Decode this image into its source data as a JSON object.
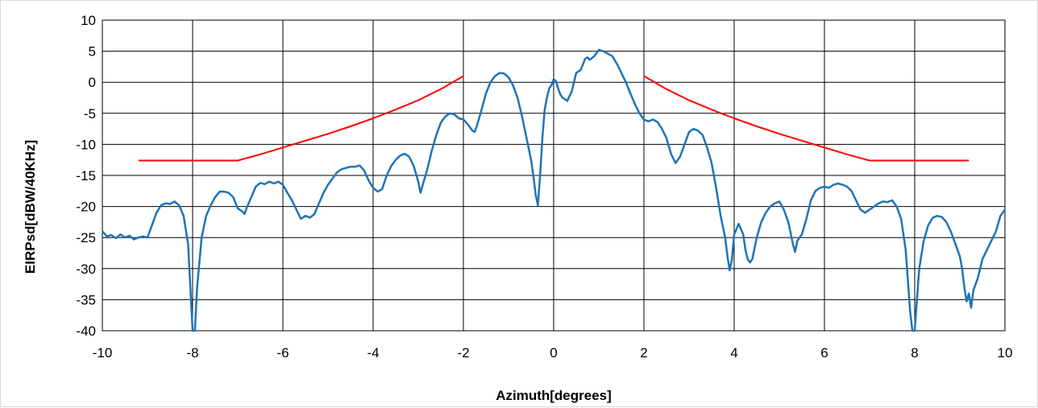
{
  "chart_data": {
    "type": "line",
    "title": "",
    "xlabel": "Azimuth[degrees]",
    "ylabel": "EIRPsd[dBW/40KHz]",
    "xlim": [
      -10,
      10
    ],
    "ylim": [
      -40,
      10
    ],
    "x_ticks": [
      -10,
      -8,
      -6,
      -4,
      -2,
      0,
      2,
      4,
      6,
      8,
      10
    ],
    "y_ticks": [
      10,
      5,
      0,
      -5,
      -10,
      -15,
      -20,
      -25,
      -30,
      -35,
      -40
    ],
    "grid": true,
    "legend": "none",
    "colors": {
      "measured": "#1f74b8",
      "mask": "#ff0000",
      "grid": "#000000"
    },
    "series": [
      {
        "key": "measured",
        "points": [
          [
            -10,
            -24
          ],
          [
            -9.9,
            -24.8
          ],
          [
            -9.8,
            -24.6
          ],
          [
            -9.7,
            -25.1
          ],
          [
            -9.6,
            -24.5
          ],
          [
            -9.5,
            -25.0
          ],
          [
            -9.4,
            -24.7
          ],
          [
            -9.3,
            -25.3
          ],
          [
            -9.2,
            -25.0
          ],
          [
            -9.1,
            -24.8
          ],
          [
            -9.0,
            -25.0
          ],
          [
            -8.9,
            -23.0
          ],
          [
            -8.8,
            -21.0
          ],
          [
            -8.7,
            -19.8
          ],
          [
            -8.6,
            -19.5
          ],
          [
            -8.5,
            -19.6
          ],
          [
            -8.4,
            -19.2
          ],
          [
            -8.3,
            -19.8
          ],
          [
            -8.2,
            -21.5
          ],
          [
            -8.1,
            -26
          ],
          [
            -8.05,
            -33
          ],
          [
            -8.0,
            -40
          ],
          [
            -7.95,
            -40
          ],
          [
            -7.9,
            -33
          ],
          [
            -7.8,
            -25
          ],
          [
            -7.7,
            -21.5
          ],
          [
            -7.6,
            -19.8
          ],
          [
            -7.5,
            -18.5
          ],
          [
            -7.4,
            -17.6
          ],
          [
            -7.3,
            -17.6
          ],
          [
            -7.2,
            -17.8
          ],
          [
            -7.1,
            -18.5
          ],
          [
            -7.0,
            -20.3
          ],
          [
            -6.9,
            -20.8
          ],
          [
            -6.85,
            -21.2
          ],
          [
            -6.8,
            -20.2
          ],
          [
            -6.7,
            -18.5
          ],
          [
            -6.6,
            -16.8
          ],
          [
            -6.5,
            -16.2
          ],
          [
            -6.4,
            -16.4
          ],
          [
            -6.3,
            -16.0
          ],
          [
            -6.2,
            -16.3
          ],
          [
            -6.1,
            -16.0
          ],
          [
            -6.0,
            -16.5
          ],
          [
            -5.9,
            -17.8
          ],
          [
            -5.8,
            -19.0
          ],
          [
            -5.7,
            -20.5
          ],
          [
            -5.6,
            -22.0
          ],
          [
            -5.5,
            -21.5
          ],
          [
            -5.4,
            -21.8
          ],
          [
            -5.3,
            -21.2
          ],
          [
            -5.2,
            -19.5
          ],
          [
            -5.1,
            -17.8
          ],
          [
            -5.0,
            -16.5
          ],
          [
            -4.9,
            -15.5
          ],
          [
            -4.8,
            -14.5
          ],
          [
            -4.7,
            -14.0
          ],
          [
            -4.6,
            -13.8
          ],
          [
            -4.5,
            -13.6
          ],
          [
            -4.4,
            -13.6
          ],
          [
            -4.3,
            -13.4
          ],
          [
            -4.2,
            -14.2
          ],
          [
            -4.1,
            -15.8
          ],
          [
            -4.0,
            -17.0
          ],
          [
            -3.9,
            -17.6
          ],
          [
            -3.8,
            -17.2
          ],
          [
            -3.7,
            -15.0
          ],
          [
            -3.6,
            -13.5
          ],
          [
            -3.5,
            -12.5
          ],
          [
            -3.4,
            -11.8
          ],
          [
            -3.3,
            -11.5
          ],
          [
            -3.2,
            -12.0
          ],
          [
            -3.1,
            -13.5
          ],
          [
            -3.0,
            -16.0
          ],
          [
            -2.95,
            -17.8
          ],
          [
            -2.9,
            -16.5
          ],
          [
            -2.8,
            -14.0
          ],
          [
            -2.7,
            -11.0
          ],
          [
            -2.6,
            -8.5
          ],
          [
            -2.5,
            -6.5
          ],
          [
            -2.4,
            -5.5
          ],
          [
            -2.3,
            -5.0
          ],
          [
            -2.2,
            -5.2
          ],
          [
            -2.1,
            -5.8
          ],
          [
            -2.0,
            -6.0
          ],
          [
            -1.9,
            -6.8
          ],
          [
            -1.8,
            -7.8
          ],
          [
            -1.75,
            -8.0
          ],
          [
            -1.7,
            -7.0
          ],
          [
            -1.6,
            -4.5
          ],
          [
            -1.5,
            -1.8
          ],
          [
            -1.4,
            0.0
          ],
          [
            -1.3,
            1.0
          ],
          [
            -1.2,
            1.5
          ],
          [
            -1.1,
            1.4
          ],
          [
            -1.0,
            0.8
          ],
          [
            -0.9,
            -0.5
          ],
          [
            -0.8,
            -2.5
          ],
          [
            -0.7,
            -5.5
          ],
          [
            -0.6,
            -9.0
          ],
          [
            -0.5,
            -12.5
          ],
          [
            -0.45,
            -15
          ],
          [
            -0.4,
            -18
          ],
          [
            -0.35,
            -19.8
          ],
          [
            -0.3,
            -15
          ],
          [
            -0.25,
            -9
          ],
          [
            -0.2,
            -4.5
          ],
          [
            -0.15,
            -2.5
          ],
          [
            -0.1,
            -1.0
          ],
          [
            -0.05,
            -0.5
          ],
          [
            0.0,
            0.5
          ],
          [
            0.05,
            0.2
          ],
          [
            0.1,
            -1.0
          ],
          [
            0.15,
            -2.0
          ],
          [
            0.2,
            -2.5
          ],
          [
            0.3,
            -3.0
          ],
          [
            0.4,
            -1.5
          ],
          [
            0.5,
            1.5
          ],
          [
            0.6,
            2.0
          ],
          [
            0.7,
            3.8
          ],
          [
            0.75,
            4.0
          ],
          [
            0.8,
            3.6
          ],
          [
            0.9,
            4.2
          ],
          [
            1.0,
            5.2
          ],
          [
            1.1,
            5.0
          ],
          [
            1.2,
            4.6
          ],
          [
            1.3,
            4.2
          ],
          [
            1.4,
            3.0
          ],
          [
            1.5,
            1.5
          ],
          [
            1.6,
            0.0
          ],
          [
            1.7,
            -1.8
          ],
          [
            1.8,
            -3.5
          ],
          [
            1.9,
            -5.0
          ],
          [
            2.0,
            -6.0
          ],
          [
            2.1,
            -6.3
          ],
          [
            2.2,
            -6.0
          ],
          [
            2.3,
            -6.4
          ],
          [
            2.4,
            -7.5
          ],
          [
            2.5,
            -9.0
          ],
          [
            2.6,
            -11.5
          ],
          [
            2.7,
            -13.0
          ],
          [
            2.8,
            -12.0
          ],
          [
            2.9,
            -10.0
          ],
          [
            3.0,
            -8.0
          ],
          [
            3.1,
            -7.5
          ],
          [
            3.2,
            -7.8
          ],
          [
            3.3,
            -8.5
          ],
          [
            3.4,
            -10.5
          ],
          [
            3.5,
            -13.0
          ],
          [
            3.6,
            -17.0
          ],
          [
            3.7,
            -21.5
          ],
          [
            3.8,
            -25.0
          ],
          [
            3.85,
            -28.0
          ],
          [
            3.9,
            -30.3
          ],
          [
            3.95,
            -28.5
          ],
          [
            4.0,
            -24.5
          ],
          [
            4.1,
            -22.8
          ],
          [
            4.2,
            -24.5
          ],
          [
            4.25,
            -27
          ],
          [
            4.3,
            -28.5
          ],
          [
            4.35,
            -29.0
          ],
          [
            4.4,
            -28.5
          ],
          [
            4.5,
            -25.0
          ],
          [
            4.6,
            -22.5
          ],
          [
            4.7,
            -21.0
          ],
          [
            4.8,
            -20.0
          ],
          [
            4.9,
            -19.5
          ],
          [
            5.0,
            -19.2
          ],
          [
            5.05,
            -19.8
          ],
          [
            5.1,
            -20.5
          ],
          [
            5.2,
            -22.5
          ],
          [
            5.3,
            -26.0
          ],
          [
            5.35,
            -27.3
          ],
          [
            5.4,
            -25.5
          ],
          [
            5.5,
            -24.5
          ],
          [
            5.6,
            -22.0
          ],
          [
            5.7,
            -19.0
          ],
          [
            5.8,
            -17.5
          ],
          [
            5.9,
            -17.0
          ],
          [
            6.0,
            -16.8
          ],
          [
            6.1,
            -17.0
          ],
          [
            6.2,
            -16.5
          ],
          [
            6.3,
            -16.3
          ],
          [
            6.4,
            -16.5
          ],
          [
            6.5,
            -16.8
          ],
          [
            6.6,
            -17.5
          ],
          [
            6.7,
            -19.0
          ],
          [
            6.8,
            -20.5
          ],
          [
            6.9,
            -21.0
          ],
          [
            7.0,
            -20.5
          ],
          [
            7.1,
            -20.0
          ],
          [
            7.2,
            -19.5
          ],
          [
            7.3,
            -19.2
          ],
          [
            7.4,
            -19.3
          ],
          [
            7.5,
            -19.0
          ],
          [
            7.6,
            -20.0
          ],
          [
            7.7,
            -22.0
          ],
          [
            7.8,
            -27.0
          ],
          [
            7.85,
            -32
          ],
          [
            7.9,
            -37
          ],
          [
            7.95,
            -40
          ],
          [
            8.0,
            -40
          ],
          [
            8.05,
            -35
          ],
          [
            8.1,
            -30
          ],
          [
            8.2,
            -25.5
          ],
          [
            8.3,
            -23.0
          ],
          [
            8.4,
            -21.8
          ],
          [
            8.5,
            -21.5
          ],
          [
            8.6,
            -21.7
          ],
          [
            8.7,
            -22.5
          ],
          [
            8.8,
            -24.0
          ],
          [
            8.9,
            -26.0
          ],
          [
            9.0,
            -28.0
          ],
          [
            9.05,
            -30
          ],
          [
            9.1,
            -33.0
          ],
          [
            9.15,
            -35.3
          ],
          [
            9.2,
            -34.0
          ],
          [
            9.25,
            -36.3
          ],
          [
            9.3,
            -33.5
          ],
          [
            9.4,
            -31.5
          ],
          [
            9.5,
            -28.5
          ],
          [
            9.6,
            -27.0
          ],
          [
            9.7,
            -25.5
          ],
          [
            9.8,
            -24.0
          ],
          [
            9.9,
            -21.5
          ],
          [
            10.0,
            -20.5
          ]
        ]
      },
      {
        "key": "mask_left",
        "points": [
          [
            -9.2,
            -12.6
          ],
          [
            -7.0,
            -12.6
          ],
          [
            -6.5,
            -11.6
          ],
          [
            -6.0,
            -10.5
          ],
          [
            -5.5,
            -9.4
          ],
          [
            -5.0,
            -8.3
          ],
          [
            -4.5,
            -7.1
          ],
          [
            -4.0,
            -5.8
          ],
          [
            -3.5,
            -4.4
          ],
          [
            -3.0,
            -2.9
          ],
          [
            -2.5,
            -1.1
          ],
          [
            -2.0,
            1.0
          ]
        ]
      },
      {
        "key": "mask_right",
        "points": [
          [
            2.0,
            1.0
          ],
          [
            2.5,
            -1.1
          ],
          [
            3.0,
            -2.9
          ],
          [
            3.5,
            -4.4
          ],
          [
            4.0,
            -5.8
          ],
          [
            4.5,
            -7.1
          ],
          [
            5.0,
            -8.3
          ],
          [
            5.5,
            -9.4
          ],
          [
            6.0,
            -10.5
          ],
          [
            6.5,
            -11.6
          ],
          [
            7.0,
            -12.6
          ],
          [
            9.2,
            -12.6
          ]
        ]
      }
    ]
  }
}
